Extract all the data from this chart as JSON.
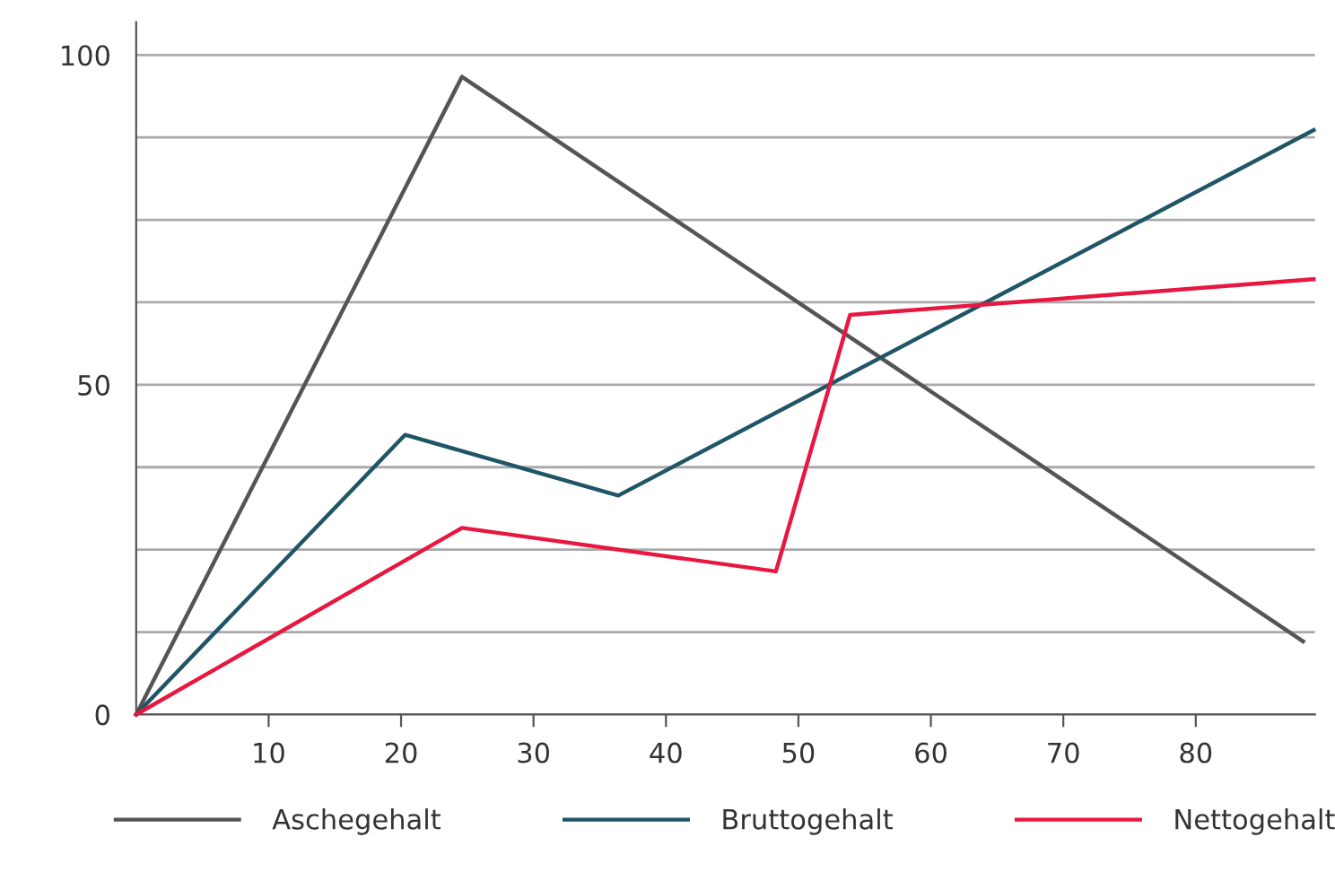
{
  "chart_data": {
    "type": "line",
    "xlim": [
      0,
      89
    ],
    "xticks": [
      10,
      20,
      30,
      40,
      50,
      60,
      70,
      80
    ],
    "ylim": [
      0,
      105
    ],
    "yticks": [
      0,
      {
        "value": 12.5,
        "label": null
      },
      {
        "value": 25,
        "label": null
      },
      {
        "value": 37.5,
        "label": null
      },
      50,
      {
        "value": 62.5,
        "label": null
      },
      {
        "value": 75,
        "label": null
      },
      {
        "value": 87.5,
        "label": null
      },
      100
    ],
    "grid": "y",
    "legend": "bottom",
    "marker": "none",
    "line_style": "solid",
    "series": [
      {
        "name": "Aschegehalt",
        "color": "#555555",
        "x": [
          0,
          24.6,
          88.1
        ],
        "values": [
          0,
          96.7,
          11.1
        ]
      },
      {
        "name": "Bruttogehalt",
        "color": "#1f5566",
        "x": [
          0,
          20.3,
          36.4,
          88.9
        ],
        "values": [
          0,
          42.4,
          33.2,
          88.6
        ]
      },
      {
        "name": "Nettogehalt",
        "color": "#e8173f",
        "x": [
          0,
          24.6,
          48.3,
          53.9,
          88.9
        ],
        "values": [
          0,
          28.3,
          21.7,
          60.6,
          66.0
        ]
      }
    ]
  }
}
